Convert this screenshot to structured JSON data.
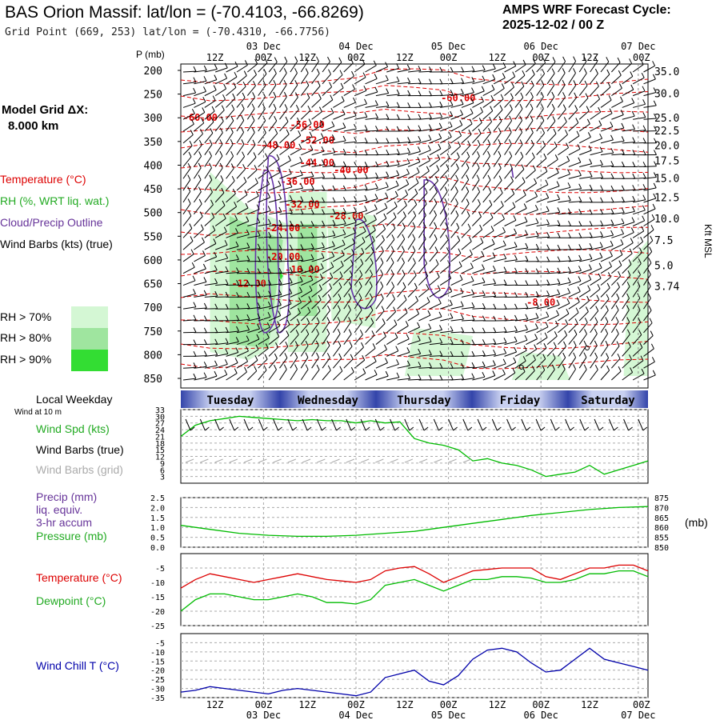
{
  "header": {
    "title": "BAS Orion Massif:  lat/lon = (-70.4103, -66.8269)",
    "subtitle": "Grid Point (669, 253) lat/lon = (-70.4310, -66.7756)",
    "cycle_line1": "AMPS WRF Forecast Cycle:",
    "cycle_line2": "2025-12-02 / 00  Z"
  },
  "model_grid": {
    "label": "Model Grid ΔX:",
    "value": "8.000 km"
  },
  "legend_left": {
    "temperature": "Temperature (°C)",
    "rh": "RH (%, WRT liq. wat.)",
    "cloud": "Cloud/Precip Outline",
    "barbs": "Wind Barbs (kts) (true)",
    "rh70": "RH > 70%",
    "rh80": "RH > 80%",
    "rh90": "RH > 90%",
    "rh70_color": "#d4f7d4",
    "rh80_color": "#9fe59f",
    "rh90_color": "#33dd33"
  },
  "colors": {
    "temperature": "#dd0000",
    "dewpoint": "#00bb00",
    "rh_line": "#22bb22",
    "cloud": "#6633aa",
    "precip": "#7744aa",
    "windchill": "#0000aa",
    "grid_barb": "#aaaaaa"
  },
  "time_axis": {
    "top_hours": [
      "12Z",
      "00Z",
      "12Z",
      "00Z",
      "12Z",
      "00Z",
      "12Z",
      "00Z",
      "12Z",
      "00Z"
    ],
    "dates": [
      "03 Dec",
      "04 Dec",
      "05 Dec",
      "06 Dec",
      "07 Dec"
    ],
    "date_hours": [
      "00Z",
      "00Z",
      "00Z",
      "00Z",
      "00Z"
    ]
  },
  "weekdays": {
    "label": "Local Weekday",
    "days": [
      "Tuesday",
      "Wednesday",
      "Thursday",
      "Friday",
      "Saturday"
    ]
  },
  "panel_labels": {
    "pressure_axis_title": "P (mb)",
    "kft_title": "Kft MSL",
    "wind_at": "Wind at 10 m",
    "wind_spd": "Wind Spd (kts)",
    "wind_barbs_true": "Wind Barbs (true)",
    "wind_barbs_grid": "Wind Barbs (grid)",
    "precip": "Precip (mm)",
    "liq": "liq. equiv.",
    "accum": "3-hr accum",
    "pressure": "Pressure (mb)",
    "pressure_unit": "(mb)",
    "temperature": "Temperature (°C)",
    "dewpoint": "Dewpoint (°C)",
    "windchill": "Wind Chill T (°C)"
  },
  "chart_data": [
    {
      "type": "heatmap",
      "ylabel": "P (mb)",
      "p_ticks": [
        200,
        250,
        300,
        350,
        400,
        450,
        500,
        550,
        600,
        650,
        700,
        750,
        800,
        850
      ],
      "kft_ticks": [
        {
          "p": 202,
          "label": "35.0"
        },
        {
          "p": 248,
          "label": "30.0"
        },
        {
          "p": 300,
          "label": "25.0"
        },
        {
          "p": 327,
          "label": "22.5"
        },
        {
          "p": 358,
          "label": "20.0"
        },
        {
          "p": 390,
          "label": "17.5"
        },
        {
          "p": 427,
          "label": "15.0"
        },
        {
          "p": 468,
          "label": "12.5"
        },
        {
          "p": 512,
          "label": "10.0"
        },
        {
          "p": 558,
          "label": "7.5"
        },
        {
          "p": 611,
          "label": "5.0"
        },
        {
          "p": 655,
          "label": "3.74"
        }
      ],
      "temperature_labels": [
        {
          "text": "-60.00",
          "hour": 57,
          "p": 258
        },
        {
          "text": "-60.00",
          "hour": 4,
          "p": 300
        },
        {
          "text": "-56.00",
          "hour": 26,
          "p": 315
        },
        {
          "text": "-52.00",
          "hour": 28,
          "p": 348
        },
        {
          "text": "-48.00",
          "hour": 20,
          "p": 358
        },
        {
          "text": "-44.00",
          "hour": 28,
          "p": 395
        },
        {
          "text": "-40.00",
          "hour": 35,
          "p": 410
        },
        {
          "text": "-36.00",
          "hour": 24,
          "p": 435
        },
        {
          "text": "-32.00",
          "hour": 25,
          "p": 483
        },
        {
          "text": "-28.00",
          "hour": 34,
          "p": 507
        },
        {
          "text": "-24.00",
          "hour": 21,
          "p": 533
        },
        {
          "text": "-20.00",
          "hour": 21,
          "p": 593
        },
        {
          "text": "-16.00",
          "hour": 25,
          "p": 620
        },
        {
          "text": "-12.00",
          "hour": 14,
          "p": 650
        },
        {
          "text": "-8.00",
          "hour": 74,
          "p": 690
        }
      ]
    },
    {
      "type": "line",
      "title": "Wind Spd (kts)",
      "yticks": [
        3,
        6,
        9,
        12,
        15,
        18,
        21,
        24,
        27,
        30,
        33
      ],
      "ylim": [
        0,
        33
      ],
      "x_hours": [
        0,
        3,
        6,
        9,
        12,
        15,
        18,
        21,
        24,
        27,
        30,
        33,
        36,
        39,
        42,
        45,
        48,
        51,
        54,
        57,
        60,
        63,
        66,
        69,
        72,
        75,
        78,
        81,
        84,
        87,
        90,
        93,
        96
      ],
      "values": [
        21,
        26,
        28,
        29,
        30,
        29.5,
        29,
        28.5,
        28,
        28.5,
        28,
        28,
        27,
        28,
        27,
        27.5,
        20,
        18,
        17,
        15,
        10,
        11,
        9,
        8,
        6,
        3,
        4,
        5,
        8,
        4,
        6,
        8,
        10
      ]
    },
    {
      "type": "line",
      "title": "Pressure (mb)",
      "yticks_left": [
        "0.0",
        "0.5",
        "1.0",
        "1.5",
        "2.0",
        "2.5"
      ],
      "yticks_right": [
        "850",
        "855",
        "860",
        "865",
        "870",
        "875"
      ],
      "ylim": [
        850,
        875
      ],
      "x_hours": [
        0,
        6,
        12,
        18,
        24,
        30,
        36,
        42,
        48,
        54,
        60,
        66,
        72,
        78,
        84,
        90,
        96
      ],
      "values": [
        861,
        859,
        857,
        856,
        855.5,
        855.5,
        856,
        857,
        858,
        860,
        862,
        864,
        866,
        867.5,
        869,
        870,
        870.5
      ]
    },
    {
      "type": "line",
      "title": "Temperature (°C)",
      "yticks": [
        -5,
        -10,
        -15,
        -20,
        -25
      ],
      "ylim": [
        -25,
        0
      ],
      "x_hours": [
        0,
        3,
        6,
        9,
        12,
        15,
        18,
        21,
        24,
        27,
        30,
        33,
        36,
        39,
        42,
        45,
        48,
        51,
        54,
        57,
        60,
        63,
        66,
        69,
        72,
        75,
        78,
        81,
        84,
        87,
        90,
        93,
        96
      ],
      "series": [
        {
          "name": "Temperature",
          "color": "#dd0000",
          "values": [
            -12,
            -9,
            -7,
            -8,
            -9,
            -10,
            -9,
            -8,
            -7,
            -8,
            -9,
            -9.5,
            -10,
            -9,
            -6,
            -5,
            -4.5,
            -7,
            -10,
            -8,
            -6,
            -5.5,
            -5,
            -5,
            -5,
            -8,
            -9,
            -7,
            -5,
            -5,
            -4,
            -4,
            -6
          ]
        },
        {
          "name": "Dewpoint",
          "color": "#00bb00",
          "values": [
            -20,
            -16,
            -14,
            -14,
            -15,
            -16,
            -16,
            -15,
            -14,
            -15,
            -17,
            -17,
            -17.5,
            -16,
            -11,
            -10,
            -9,
            -11,
            -13,
            -11,
            -9,
            -9,
            -8,
            -8,
            -8.5,
            -10,
            -10,
            -9,
            -7,
            -7,
            -6,
            -6,
            -8
          ]
        }
      ]
    },
    {
      "type": "line",
      "title": "Wind Chill T (°C)",
      "yticks": [
        -5,
        -10,
        -15,
        -20,
        -25,
        -30,
        -35
      ],
      "ylim": [
        -35,
        0
      ],
      "x_hours": [
        0,
        3,
        6,
        9,
        12,
        15,
        18,
        21,
        24,
        27,
        30,
        33,
        36,
        39,
        42,
        45,
        48,
        51,
        54,
        57,
        60,
        63,
        66,
        69,
        72,
        75,
        78,
        81,
        84,
        87,
        90,
        93,
        96
      ],
      "values": [
        -32,
        -31,
        -29,
        -30,
        -31,
        -32,
        -33,
        -31,
        -30,
        -31,
        -32,
        -33,
        -34,
        -32,
        -24,
        -22,
        -20,
        -26,
        -28,
        -23,
        -14,
        -9,
        -8,
        -10,
        -16,
        -21,
        -20,
        -14,
        -8,
        -14,
        -16,
        -18,
        -20
      ]
    }
  ]
}
